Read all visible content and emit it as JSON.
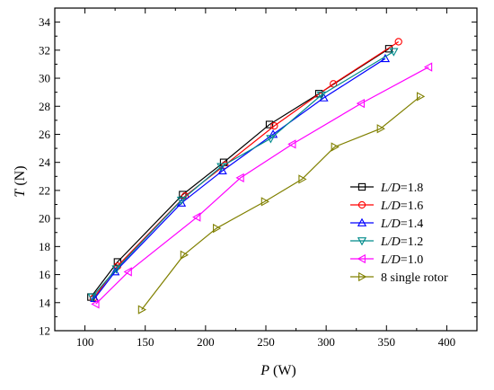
{
  "chart_data": {
    "type": "line",
    "xlabel_var": "P",
    "xlabel_unit": " (W)",
    "ylabel_var": "T",
    "ylabel_unit": " (N)",
    "xlim": [
      75,
      425
    ],
    "ylim": [
      12,
      35
    ],
    "xticks": [
      100,
      150,
      200,
      250,
      300,
      350,
      400
    ],
    "yticks": [
      12,
      14,
      16,
      18,
      20,
      22,
      24,
      26,
      28,
      30,
      32,
      34
    ],
    "grid": false,
    "legend_position": "bottom-right",
    "series": [
      {
        "name_var": "L/D",
        "name_rest": "=1.8",
        "color": "#000000",
        "marker": "square",
        "x": [
          105,
          127,
          181,
          215,
          253,
          294,
          352
        ],
        "y": [
          14.4,
          16.9,
          21.7,
          24.0,
          26.7,
          28.9,
          32.1
        ]
      },
      {
        "name_var": "L/D",
        "name_rest": "=1.6",
        "color": "#ff0000",
        "marker": "circle",
        "x": [
          107,
          127,
          183,
          216,
          257,
          306,
          360
        ],
        "y": [
          14.3,
          16.6,
          21.6,
          23.8,
          26.6,
          29.6,
          32.6
        ]
      },
      {
        "name_var": "L/D",
        "name_rest": "=1.4",
        "color": "#0000ff",
        "marker": "triangle-up",
        "x": [
          108,
          125,
          180,
          214,
          256,
          298,
          349
        ],
        "y": [
          14.3,
          16.2,
          21.1,
          23.4,
          26.0,
          28.6,
          31.4
        ]
      },
      {
        "name_var": "L/D",
        "name_rest": "=1.2",
        "color": "#008b8b",
        "marker": "triangle-down",
        "x": [
          106,
          126,
          180,
          213,
          254,
          296,
          356
        ],
        "y": [
          14.4,
          16.4,
          21.3,
          23.7,
          25.7,
          28.8,
          31.9
        ]
      },
      {
        "name_var": "L/D",
        "name_rest": "=1.0",
        "color": "#ff00ff",
        "marker": "triangle-left",
        "x": [
          109,
          136,
          193,
          229,
          272,
          329,
          385
        ],
        "y": [
          13.9,
          16.2,
          20.1,
          22.9,
          25.3,
          28.2,
          30.8
        ]
      },
      {
        "name_var": "",
        "name_rest": "8 single rotor",
        "color": "#808000",
        "marker": "triangle-right",
        "x": [
          147,
          182,
          209,
          249,
          280,
          307,
          345,
          378
        ],
        "y": [
          13.5,
          17.4,
          19.3,
          21.2,
          22.8,
          25.1,
          26.4,
          28.7
        ]
      }
    ]
  }
}
